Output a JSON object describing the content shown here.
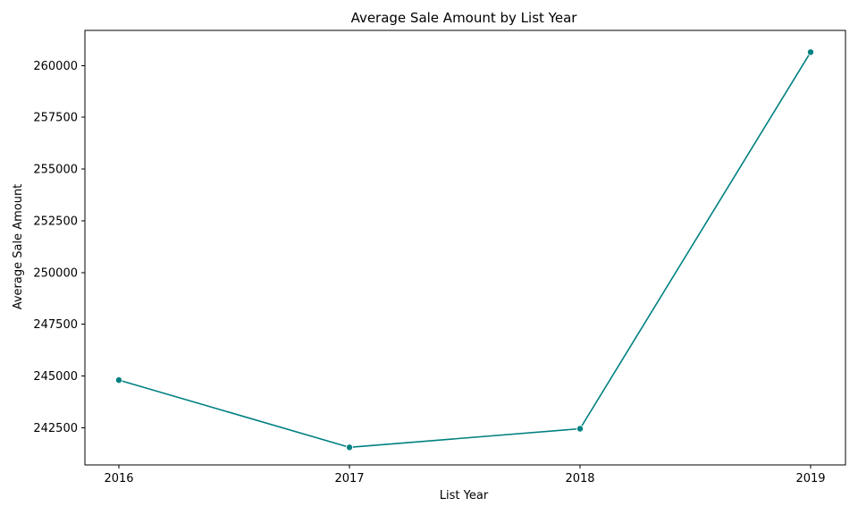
{
  "colors": {
    "series": "#008080",
    "axes": "#000000",
    "background": "#ffffff"
  },
  "chart_data": {
    "type": "line",
    "title": "Average Sale Amount by List Year",
    "xlabel": "List Year",
    "ylabel": "Average Sale Amount",
    "categories": [
      "2016",
      "2017",
      "2018",
      "2019"
    ],
    "series": [
      {
        "values": [
          244800,
          241550,
          242450,
          260650
        ],
        "marker": "circle"
      }
    ],
    "yticks": [
      242500,
      245000,
      247500,
      250000,
      252500,
      255000,
      257500,
      260000
    ],
    "ylim": [
      240700,
      261700
    ],
    "grid": false,
    "legend": "none"
  }
}
